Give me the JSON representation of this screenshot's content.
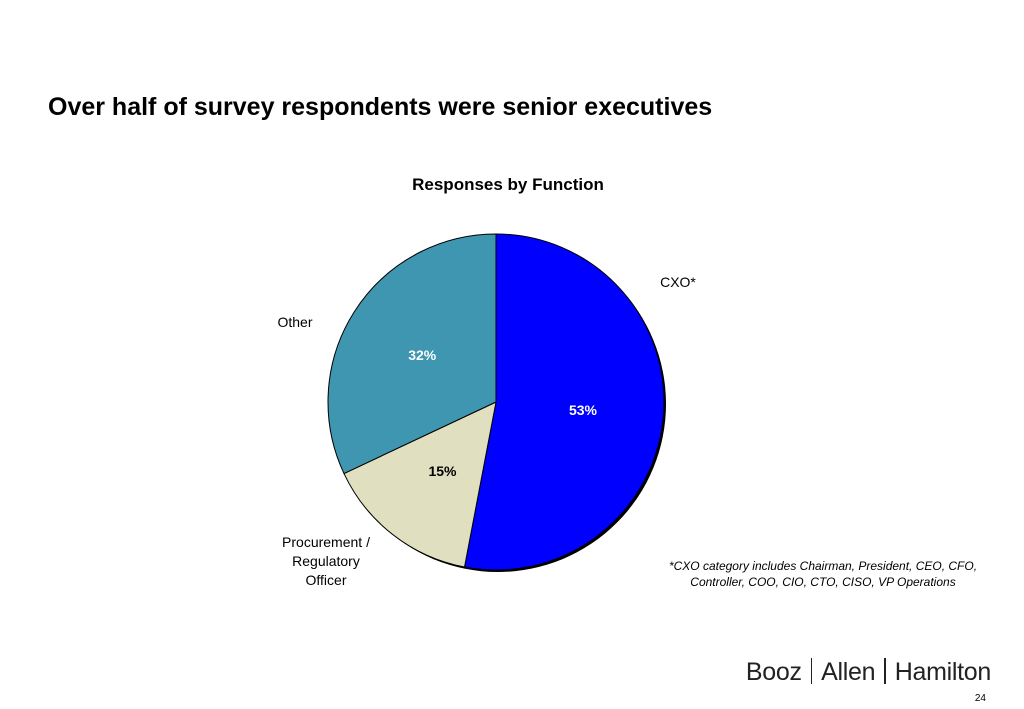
{
  "slide": {
    "title": "Over half of survey respondents were senior executives",
    "footnote": "*CXO category includes Chairman, President, CEO, CFO, Controller, COO, CIO, CTO, CISO, VP Operations",
    "brand": [
      "Booz",
      "Allen",
      "Hamilton"
    ],
    "page_number": "24"
  },
  "chart_data": {
    "type": "pie",
    "title": "Responses by Function",
    "slices": [
      {
        "label": "CXO*",
        "value": 53,
        "display": "53%",
        "color": "#0000FF",
        "label_color": "#FFFFFF"
      },
      {
        "label": "Procurement / Regulatory Officer",
        "label_lines": [
          "Procurement /",
          "Regulatory",
          "Officer"
        ],
        "value": 15,
        "display": "15%",
        "color": "#E0E0C0",
        "label_color": "#000000"
      },
      {
        "label": "Other",
        "value": 32,
        "display": "32%",
        "color": "#3F96B0",
        "label_color": "#FFFFFF"
      }
    ],
    "start_angle": "12 o'clock",
    "direction": "clockwise"
  }
}
